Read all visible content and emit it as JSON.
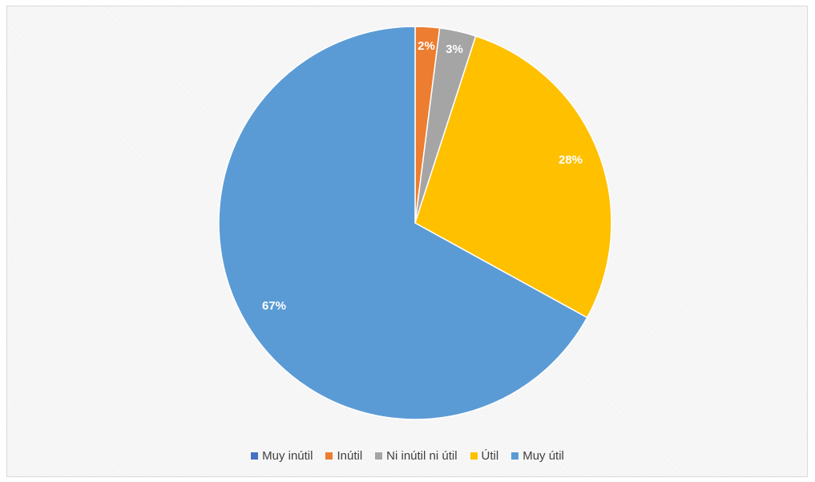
{
  "chart_data": {
    "type": "pie",
    "title": "",
    "legend_position": "bottom",
    "start_angle": "12 o'clock, clockwise",
    "slices": [
      {
        "name": "Muy inútil",
        "value": 0,
        "label": "",
        "color": "#4472c4"
      },
      {
        "name": "Inútil",
        "value": 2,
        "label": "2%",
        "color": "#ed7d31"
      },
      {
        "name": "Ni inútil ni útil",
        "value": 3,
        "label": "3%",
        "color": "#a5a5a5"
      },
      {
        "name": "Útil",
        "value": 28,
        "label": "28%",
        "color": "#ffc000"
      },
      {
        "name": "Muy útil",
        "value": 67,
        "label": "67%",
        "color": "#5b9bd5"
      }
    ]
  }
}
